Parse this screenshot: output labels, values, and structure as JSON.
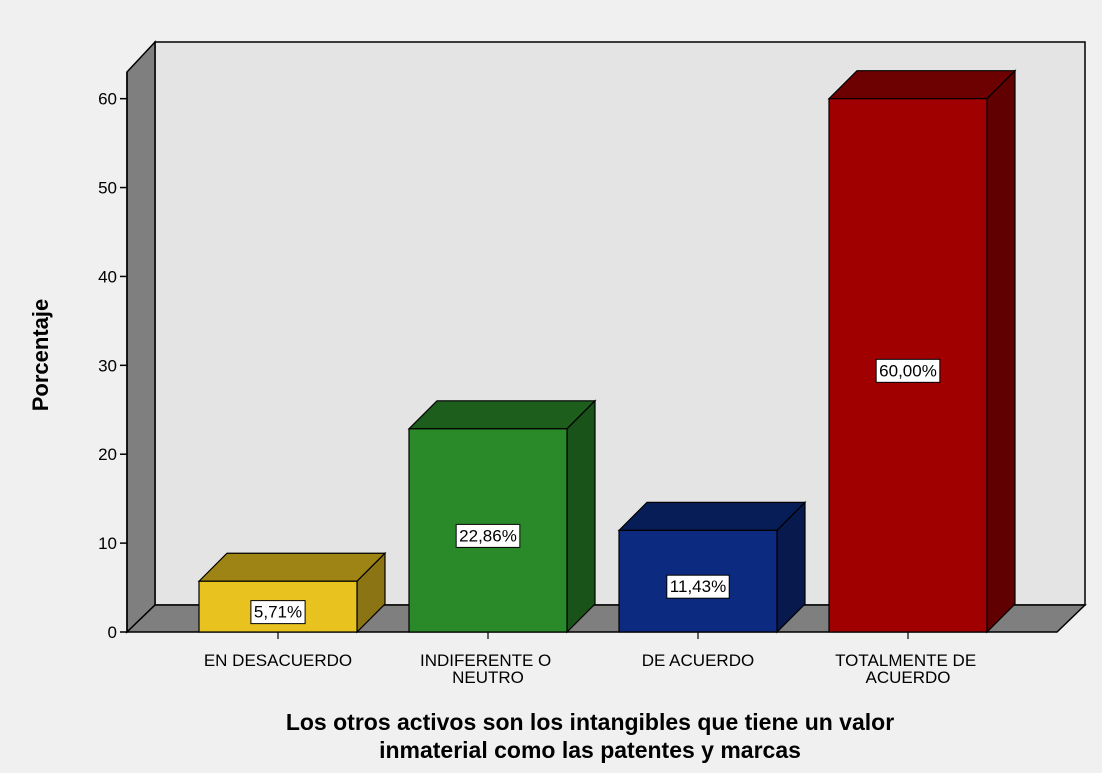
{
  "chart_data": {
    "type": "bar3d",
    "categories": [
      "EN DESACUERDO",
      "INDIFERENTE O NEUTRO",
      "DE ACUERDO",
      "TOTALMENTE DE ACUERDO"
    ],
    "values": [
      5.71,
      22.86,
      11.43,
      60.0
    ],
    "value_labels": [
      "5,71%",
      "22,86%",
      "11,43%",
      "60,00%"
    ],
    "colors": [
      "#e8c21f",
      "#2a8a2a",
      "#0b2a80",
      "#a00000"
    ],
    "ylim": [
      0,
      63
    ],
    "yticks": [
      0,
      10,
      20,
      30,
      40,
      50,
      60
    ],
    "ylabel": "Porcentaje",
    "xlabel": [
      "Los otros activos son los intangibles que tiene un valor",
      "inmaterial como las patentes y marcas"
    ]
  }
}
